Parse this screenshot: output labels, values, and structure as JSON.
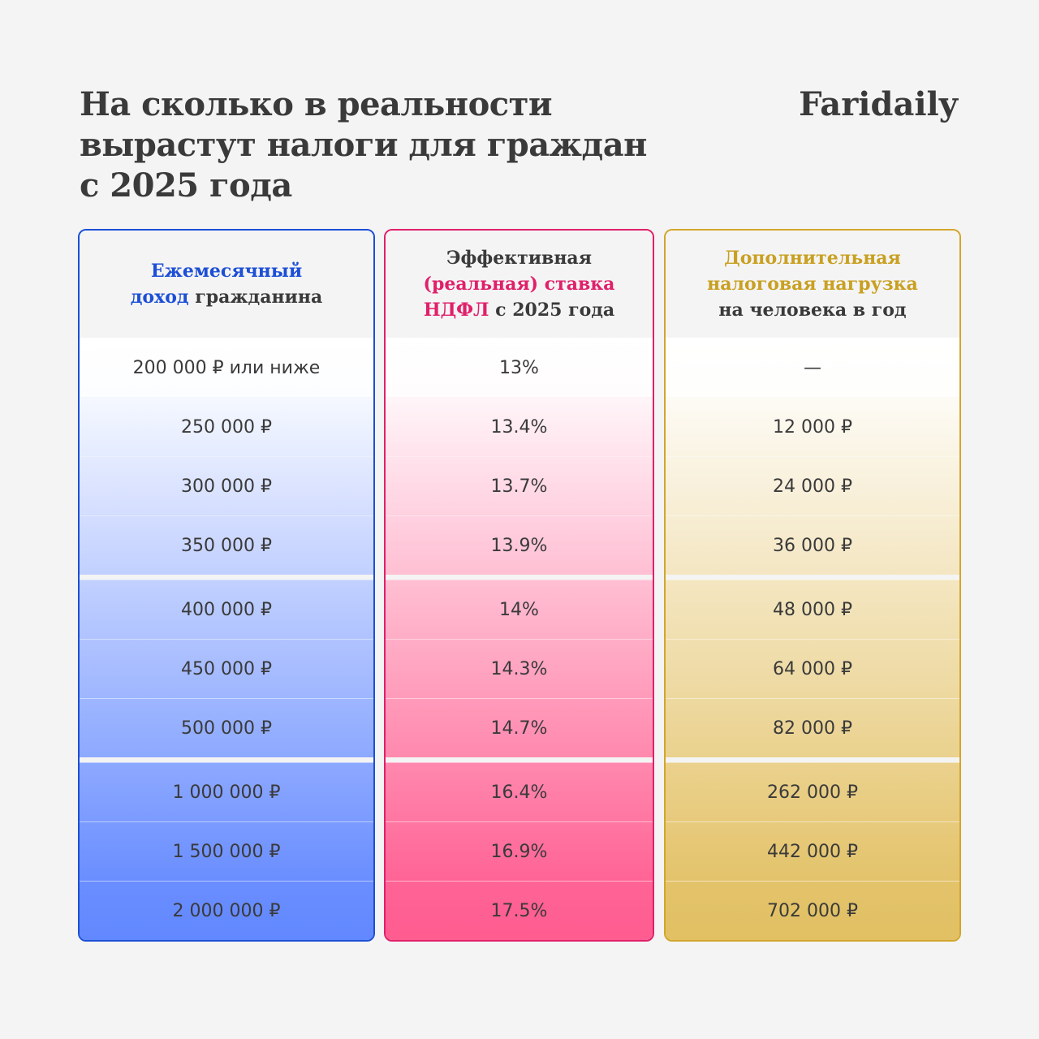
{
  "title": {
    "line1": "На сколько в реальности",
    "line2": "вырастут налоги для граждан",
    "line3": "с 2025 года"
  },
  "brand": "Faridaily",
  "colors": {
    "blue": "#1c4fd6",
    "pink": "#e0206a",
    "gold": "#d2a62c",
    "background": "#f4f4f4"
  },
  "chart_data": {
    "type": "table",
    "columns": [
      {
        "header": [
          [
            {
              "t": "Ежемесячный",
              "hl": true
            }
          ],
          [
            {
              "t": "доход",
              "hl": true
            },
            {
              "t": " гражданина",
              "hl": false
            }
          ]
        ],
        "values": [
          "200 000 ₽ или ниже",
          "250 000 ₽",
          "300 000 ₽",
          "350 000 ₽",
          "400 000 ₽",
          "450 000 ₽",
          "500 000 ₽",
          "1 000 000 ₽",
          "1 500 000 ₽",
          "2 000 000 ₽"
        ]
      },
      {
        "header": [
          [
            {
              "t": "Эффективная",
              "hl": false
            }
          ],
          [
            {
              "t": "(реальная) ставка",
              "hl": true
            }
          ],
          [
            {
              "t": "НДФЛ",
              "hl": true
            },
            {
              "t": " с 2025 года",
              "hl": false
            }
          ]
        ],
        "values": [
          "13%",
          "13.4%",
          "13.7%",
          "13.9%",
          "14%",
          "14.3%",
          "14.7%",
          "16.4%",
          "16.9%",
          "17.5%"
        ]
      },
      {
        "header": [
          [
            {
              "t": "Дополнительная",
              "hl": true
            }
          ],
          [
            {
              "t": "налоговая нагрузка",
              "hl": true
            }
          ],
          [
            {
              "t": "на человека в год",
              "hl": false
            }
          ]
        ],
        "values": [
          "—",
          "12 000 ₽",
          "24 000 ₽",
          "36 000 ₽",
          "48 000 ₽",
          "64 000 ₽",
          "82 000 ₽",
          "262 000 ₽",
          "442 000 ₽",
          "702 000 ₽"
        ]
      }
    ],
    "groups": [
      [
        0,
        1,
        2,
        3
      ],
      [
        4,
        5,
        6
      ],
      [
        7,
        8,
        9
      ]
    ]
  }
}
